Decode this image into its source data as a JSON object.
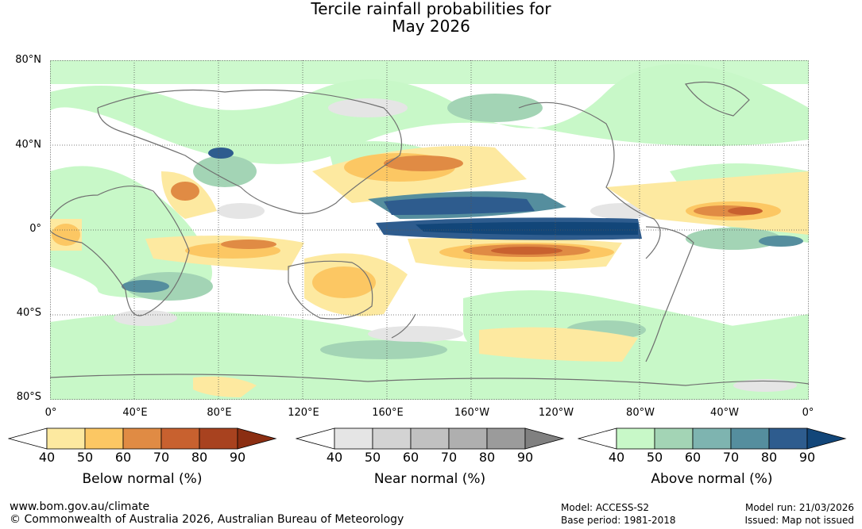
{
  "title_line1": "Tercile rainfall probabilities for",
  "title_line2": "May 2026",
  "lat_labels": [
    "80°N",
    "40°N",
    "0°",
    "40°S",
    "80°S"
  ],
  "lon_labels": [
    "0°",
    "40°E",
    "80°E",
    "120°E",
    "160°E",
    "160°W",
    "120°W",
    "80°W",
    "40°W",
    "0°"
  ],
  "colorbars": [
    {
      "title": "Below normal (%)",
      "ticks": [
        "40",
        "50",
        "60",
        "70",
        "80",
        "90"
      ],
      "colors": [
        "#ffffff",
        "#fde9a0",
        "#fcc763",
        "#e08b44",
        "#c8612f",
        "#a8421f",
        "#8b2e12"
      ]
    },
    {
      "title": "Near normal (%)",
      "ticks": [
        "40",
        "50",
        "60",
        "70",
        "80",
        "90"
      ],
      "colors": [
        "#ffffff",
        "#e5e5e5",
        "#d3d3d3",
        "#c1c1c1",
        "#afafaf",
        "#9b9b9b",
        "#808080"
      ]
    },
    {
      "title": "Above normal (%)",
      "ticks": [
        "40",
        "50",
        "60",
        "70",
        "80",
        "90"
      ],
      "colors": [
        "#ffffff",
        "#c8f8c8",
        "#a3d4b5",
        "#7eb4b0",
        "#558e9e",
        "#2e5c8e",
        "#124679"
      ]
    }
  ],
  "footer": {
    "url": "www.bom.gov.au/climate",
    "copyright": "© Commonwealth of Australia 2026, Australian Bureau of Meteorology",
    "model": "Model: ACCESS-S2",
    "base_period": "Base period: 1981-2018",
    "model_run": "Model run: 21/03/2026",
    "issued": "Issued: Map not issued"
  }
}
